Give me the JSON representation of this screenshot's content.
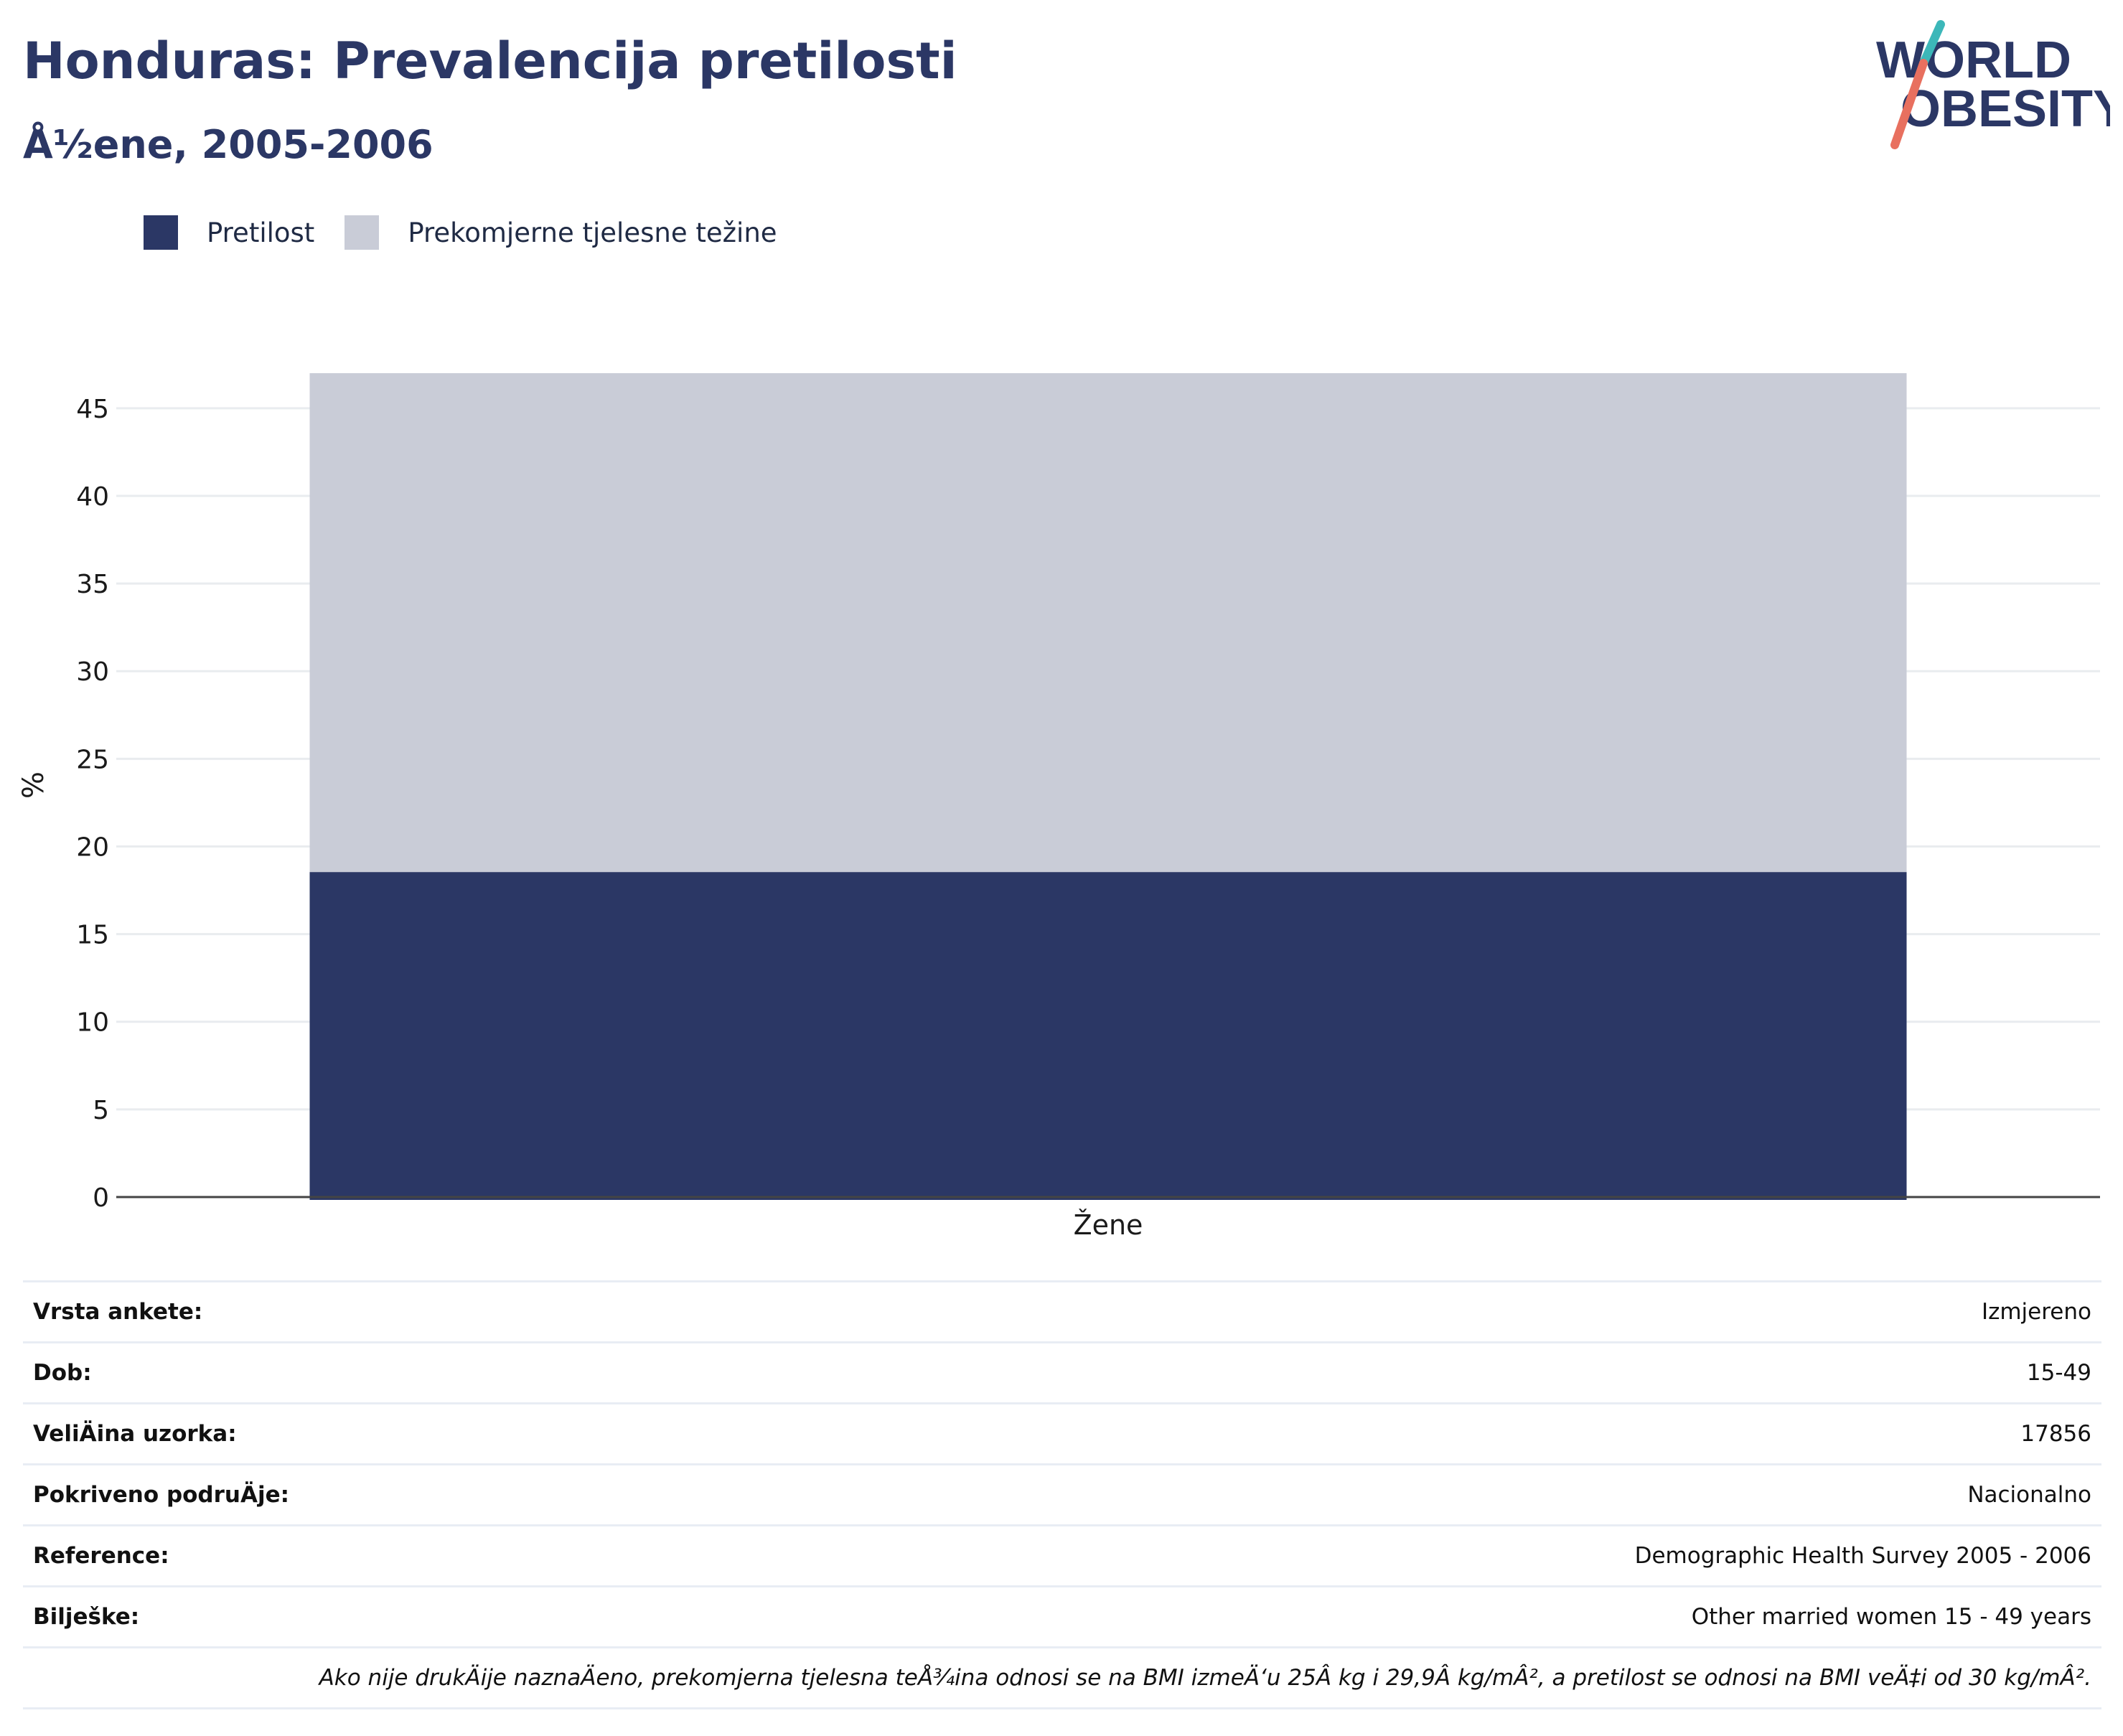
{
  "header": {
    "title": "Honduras: Prevalencija pretilosti",
    "subtitle": "Å½ene, 2005-2006"
  },
  "logo": {
    "line1": "WORLD",
    "line2": "OBESITY",
    "colors": {
      "text": "#2b3765",
      "slash_teal": "#3cb7b9",
      "slash_coral": "#e8705f"
    }
  },
  "legend": [
    {
      "label": "Pretilost",
      "color": "#2b3765"
    },
    {
      "label": "Prekomjerne tjelesne težine",
      "color": "#c9ccd7"
    }
  ],
  "chart_data": {
    "type": "bar",
    "stacked": true,
    "categories": [
      "Žene"
    ],
    "series": [
      {
        "name": "Pretilost",
        "values": [
          18.7
        ],
        "color": "#2b3765"
      },
      {
        "name": "Prekomjerne tjelesne težine",
        "values": [
          28.3
        ],
        "color": "#c9ccd7"
      }
    ],
    "xlabel": "",
    "ylabel": "%",
    "ylim": [
      0,
      47
    ],
    "yticks": [
      0,
      5,
      10,
      15,
      20,
      25,
      30,
      35,
      40,
      45
    ],
    "grid": true,
    "legend_position": "top-left"
  },
  "info": {
    "rows": [
      {
        "key": "Vrsta ankete:",
        "value": "Izmjereno"
      },
      {
        "key": "Dob:",
        "value": "15-49"
      },
      {
        "key": "VeliÄ\bina uzorka:",
        "value": "17856"
      },
      {
        "key": "Pokriveno podruÄ\bje:",
        "value": "Nacionalno"
      },
      {
        "key": "Reference:",
        "value": "Demographic Health Survey 2005 - 2006"
      },
      {
        "key": "Bilješke:",
        "value": "Other married women 15 - 49 years"
      }
    ],
    "footnote": "Ako nije drukÄ\bije naznaÄ\beno, prekomjerna tjelesna teÅ¾ina odnosi se na BMI izmeÄ‘u 25Â kg i 29,9Â kg/mÂ², a pretilost se odnosi na BMI veÄ‡i od 30 kg/mÂ²."
  }
}
